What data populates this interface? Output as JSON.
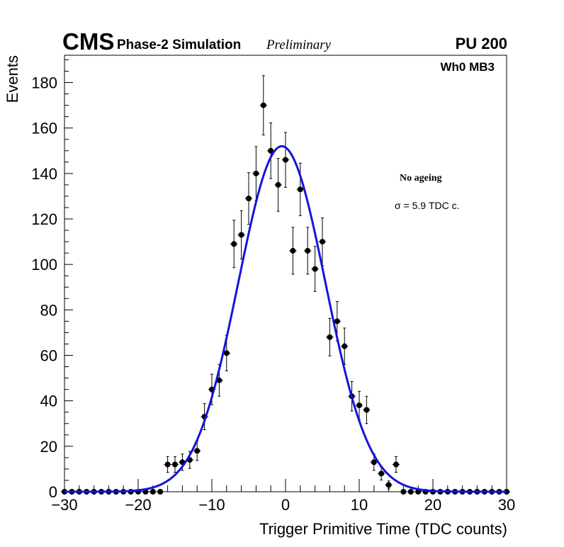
{
  "header": {
    "experiment": "CMS",
    "subtitle": "Phase-2 Simulation",
    "status": "Preliminary",
    "pileup": "PU 200",
    "chamber": "Wh0 MB3"
  },
  "annotations": {
    "condition": "No ageing",
    "sigma": "σ = 5.9 TDC c."
  },
  "colors": {
    "fit": "#1414dc",
    "points": "#000000"
  },
  "chart_data": {
    "type": "scatter",
    "title": "",
    "xlabel": "Trigger Primitive Time (TDC counts)",
    "ylabel": "Events",
    "xlim": [
      -30,
      30
    ],
    "ylim": [
      0,
      192
    ],
    "x_ticks": [
      -30,
      -20,
      -10,
      0,
      10,
      20,
      30
    ],
    "x_tick_labels": [
      "−30",
      "−20",
      "−10",
      "0",
      "10",
      "20",
      "30"
    ],
    "y_ticks": [
      0,
      20,
      40,
      60,
      80,
      100,
      120,
      140,
      160,
      180
    ],
    "y_tick_labels": [
      "0",
      "20",
      "40",
      "60",
      "80",
      "100",
      "120",
      "140",
      "160",
      "180"
    ],
    "x": [
      -30,
      -29,
      -28,
      -27,
      -26,
      -25,
      -24,
      -23,
      -22,
      -21,
      -20,
      -19,
      -18,
      -17,
      -16,
      -15,
      -14,
      -13,
      -12,
      -11,
      -10,
      -9,
      -8,
      -7,
      -6,
      -5,
      -4,
      -3,
      -2,
      -1,
      0,
      1,
      2,
      3,
      4,
      5,
      6,
      7,
      8,
      9,
      10,
      11,
      12,
      13,
      14,
      15,
      16,
      17,
      18,
      19,
      20,
      21,
      22,
      23,
      24,
      25,
      26,
      27,
      28,
      29,
      30
    ],
    "series": [
      {
        "name": "No ageing",
        "style": "points-with-errors",
        "values": [
          0,
          0,
          0,
          0,
          0,
          0,
          0,
          0,
          0,
          0,
          0,
          0,
          0,
          0,
          12,
          12,
          13,
          14,
          18,
          33,
          45,
          49,
          61,
          109,
          113,
          129,
          140,
          170,
          150,
          135,
          146,
          106,
          133,
          106,
          98,
          110,
          68,
          75,
          64,
          42,
          38,
          36,
          13,
          8,
          3,
          12,
          0,
          0,
          0,
          0,
          0,
          0,
          0,
          0,
          0,
          0,
          0,
          0,
          0,
          0,
          0
        ]
      },
      {
        "name": "Gaussian fit",
        "style": "line",
        "mean": -0.5,
        "sigma": 5.9,
        "amplitude": 152
      }
    ]
  }
}
